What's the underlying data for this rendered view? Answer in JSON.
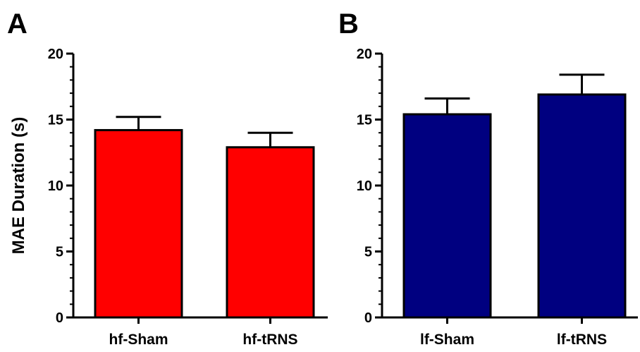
{
  "chart_data": [
    {
      "type": "bar",
      "panel_label": "A",
      "categories": [
        "hf-Sham",
        "hf-tRNS"
      ],
      "values": [
        14.2,
        12.9
      ],
      "errors": [
        1.0,
        1.1
      ],
      "ylabel": "MAE Duration (s)",
      "ylim": [
        0,
        20
      ],
      "yticks": [
        "0",
        "5",
        "10",
        "15",
        "20"
      ],
      "bar_color": "#ff0000",
      "grid": false,
      "legend": "none"
    },
    {
      "type": "bar",
      "panel_label": "B",
      "categories": [
        "lf-Sham",
        "lf-tRNS"
      ],
      "values": [
        15.4,
        16.9
      ],
      "errors": [
        1.2,
        1.5
      ],
      "ylabel": "",
      "ylim": [
        0,
        20
      ],
      "yticks": [
        "0",
        "5",
        "10",
        "15",
        "20"
      ],
      "bar_color": "#000080",
      "grid": false,
      "legend": "none"
    }
  ]
}
